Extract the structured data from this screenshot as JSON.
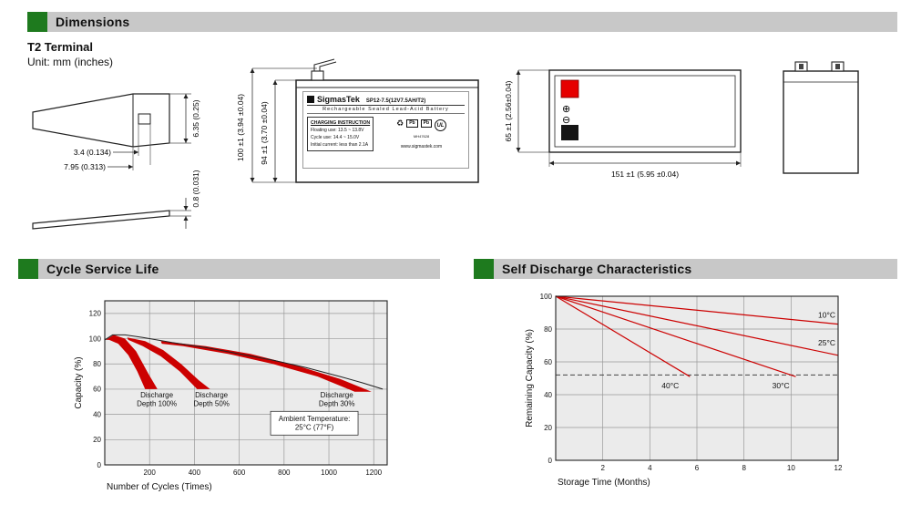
{
  "colors": {
    "header_bg": "#c8c8c8",
    "accent_green": "#1e7a1e",
    "line_red": "#cc0000"
  },
  "sections": {
    "dimensions_title": "Dimensions",
    "cycle_title": "Cycle Service Life",
    "self_discharge_title": "Self Discharge Characteristics"
  },
  "dimensions": {
    "terminal_heading": "T2 Terminal",
    "unit_note": "Unit: mm (inches)",
    "terminal_detail": {
      "hole_width": "3.4 (0.134)",
      "tab_width": "7.95 (0.313)",
      "tab_height": "6.35 (0.25)",
      "thickness": "0.8 (0.031)"
    },
    "front_view": {
      "brand": "SigmasTek",
      "model": "SP12-7.5(12V7.5AH/T2)",
      "product_type": "Rechargeable Sealed Lead-Acid Battery",
      "charging_heading": "CHARGING INSTRUCTION",
      "charging_line1": "Floating use: 13.5 ~ 13.8V",
      "charging_line2": "Cycle use: 14.4 ~ 15.0V",
      "charging_line3": "Initial current: less than 2.1A",
      "website": "www.sigmastek.com",
      "recycle_symbol": "♻",
      "pb_label": "Pb",
      "ul_mark": "UL",
      "ul_file": "MH47628",
      "overall_height": "100 ±1 (3.94 ±0.04)",
      "case_height": "94 ±1 (3.70 ±0.04)"
    },
    "top_view": {
      "width": "65 ±1 (2.56±0.04)",
      "length": "151 ±1 (5.95 ±0.04)",
      "positive_symbol": "⊕",
      "negative_symbol": "⊖"
    }
  },
  "chart_data": [
    {
      "name": "Cycle Service Life",
      "type": "area",
      "xlabel": "Number of Cycles (Times)",
      "ylabel": "Capacity (%)",
      "xlim": [
        0,
        1260
      ],
      "ylim": [
        0,
        130
      ],
      "xticks": [
        200,
        400,
        600,
        800,
        1000,
        1200
      ],
      "yticks": [
        0,
        20,
        40,
        60,
        80,
        100,
        120
      ],
      "grid": true,
      "legend": "none",
      "envelope_line": {
        "color": "#222",
        "points": [
          [
            0,
            99
          ],
          [
            35,
            103
          ],
          [
            90,
            103
          ],
          [
            170,
            101
          ],
          [
            300,
            97
          ],
          [
            450,
            93
          ],
          [
            600,
            88
          ],
          [
            750,
            83
          ],
          [
            900,
            77
          ],
          [
            1050,
            70
          ],
          [
            1150,
            65
          ],
          [
            1240,
            60
          ]
        ]
      },
      "bands": [
        {
          "label": "Discharge Depth 100%",
          "color": "#cc0000",
          "points": [
            [
              5,
              99
            ],
            [
              40,
              103
            ],
            [
              90,
              100
            ],
            [
              140,
              90
            ],
            [
              195,
              72
            ],
            [
              235,
              60
            ],
            [
              180,
              60
            ],
            [
              145,
              74
            ],
            [
              105,
              87
            ],
            [
              60,
              96
            ],
            [
              20,
              99
            ]
          ]
        },
        {
          "label": "Discharge Depth 50%",
          "color": "#cc0000",
          "points": [
            [
              100,
              101
            ],
            [
              180,
              98
            ],
            [
              260,
              91
            ],
            [
              340,
              80
            ],
            [
              420,
              67
            ],
            [
              470,
              60
            ],
            [
              412,
              60
            ],
            [
              335,
              74
            ],
            [
              250,
              86
            ],
            [
              170,
              94
            ],
            [
              105,
              99
            ]
          ]
        },
        {
          "label": "Discharge Depth 30%",
          "color": "#cc0000",
          "points": [
            [
              250,
              98
            ],
            [
              450,
              94
            ],
            [
              650,
              88
            ],
            [
              850,
              79
            ],
            [
              1050,
              68
            ],
            [
              1190,
              58
            ],
            [
              1115,
              58
            ],
            [
              950,
              70
            ],
            [
              750,
              80
            ],
            [
              550,
              88
            ],
            [
              350,
              94
            ],
            [
              255,
              96
            ]
          ]
        }
      ],
      "annotations": [
        {
          "lines": [
            "Discharge",
            "Depth 100%"
          ],
          "x": 232,
          "y": 52,
          "boxed": false
        },
        {
          "lines": [
            "Discharge",
            "Depth 50%"
          ],
          "x": 476,
          "y": 52,
          "boxed": false
        },
        {
          "lines": [
            "Discharge",
            "Depth 30%"
          ],
          "x": 1035,
          "y": 52,
          "boxed": false
        },
        {
          "lines": [
            "Ambient Temperature:",
            "25°C (77°F)"
          ],
          "x": 935,
          "y": 33,
          "boxed": true
        }
      ]
    },
    {
      "name": "Self Discharge Characteristics",
      "type": "line",
      "xlabel": "Storage Time (Months)",
      "ylabel": "Remaining Capacity (%)",
      "xlim": [
        0,
        12
      ],
      "ylim": [
        0,
        100
      ],
      "xticks": [
        2,
        4,
        6,
        8,
        10,
        12
      ],
      "yticks": [
        0,
        20,
        40,
        60,
        80,
        100
      ],
      "grid": true,
      "legend": "inline-labels",
      "dashed_line": {
        "y": 52,
        "color": "#444"
      },
      "series": [
        {
          "name": "10°C",
          "color": "#cc0000",
          "points": [
            [
              0,
              100
            ],
            [
              12,
              83
            ]
          ],
          "label_x": 11.15,
          "label_y": 87
        },
        {
          "name": "25°C",
          "color": "#cc0000",
          "points": [
            [
              0,
              100
            ],
            [
              12,
              64
            ]
          ],
          "label_x": 11.15,
          "label_y": 70
        },
        {
          "name": "30°C",
          "color": "#cc0000",
          "points": [
            [
              0,
              100
            ],
            [
              10.2,
              51
            ]
          ],
          "label_x": 9.2,
          "label_y": 44
        },
        {
          "name": "40°C",
          "color": "#cc0000",
          "points": [
            [
              0,
              100
            ],
            [
              5.7,
              51
            ]
          ],
          "label_x": 4.5,
          "label_y": 44
        }
      ]
    }
  ]
}
